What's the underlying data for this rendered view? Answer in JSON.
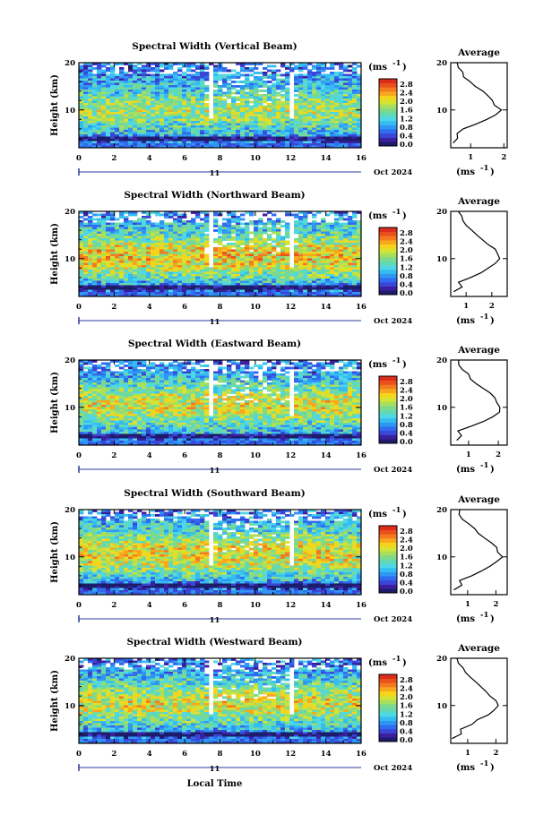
{
  "figure": {
    "xlabel": "Local Time",
    "date_label": "Oct 2024",
    "day_label": "11",
    "unit_label": "(ms",
    "unit_sup": "-1",
    "unit_close": ")",
    "avg_title": "Average",
    "ylabel": "Height (km)"
  },
  "colors": [
    "#1c1c6b",
    "#3b1f9e",
    "#3a46d6",
    "#2f6cf0",
    "#2f96f3",
    "#35bdf2",
    "#4fd7e5",
    "#63d9b2",
    "#7fd98a",
    "#a9df5a",
    "#d6e332",
    "#f5d51c",
    "#f7a81d",
    "#f37a1e",
    "#e9511c",
    "#dc2c1b"
  ],
  "chart_data": [
    {
      "type": "heatmap",
      "title": "Spectral Width (Vertical Beam)",
      "xlim": [
        0,
        16
      ],
      "ylim": [
        2,
        20
      ],
      "xticks": [
        0,
        2,
        4,
        6,
        8,
        10,
        12,
        14,
        16
      ],
      "xtick_labels": [
        "0",
        "2",
        "4",
        "6",
        "8",
        "10",
        "12",
        "14",
        "16"
      ],
      "yticks": [
        10,
        20
      ],
      "colorbar_ticks": [
        "2.8",
        "2.4",
        "2.0",
        "1.6",
        "1.2",
        "0.8",
        "0.4",
        "0.0"
      ],
      "colorbar_range": [
        0,
        3.0
      ],
      "profile_band": [
        {
          "z": 2,
          "v": 0.5
        },
        {
          "z": 4,
          "v": 0.8
        },
        {
          "z": 6,
          "v": 1.2
        },
        {
          "z": 8,
          "v": 1.6
        },
        {
          "z": 10,
          "v": 1.8
        },
        {
          "z": 12,
          "v": 1.6
        },
        {
          "z": 14,
          "v": 1.2
        },
        {
          "z": 16,
          "v": 0.9
        },
        {
          "z": 18,
          "v": 0.7
        },
        {
          "z": 20,
          "v": 0.6
        }
      ],
      "avg": {
        "xticks": [
          1,
          2
        ],
        "xlim": [
          0.4,
          2.1
        ],
        "yticks": [
          10,
          20
        ],
        "profile": [
          {
            "z": 3,
            "v": 0.45
          },
          {
            "z": 4,
            "v": 0.55
          },
          {
            "z": 5,
            "v": 0.6
          },
          {
            "z": 6,
            "v": 0.8
          },
          {
            "z": 7,
            "v": 1.2
          },
          {
            "z": 8,
            "v": 1.5
          },
          {
            "z": 9,
            "v": 1.75
          },
          {
            "z": 10,
            "v": 1.9
          },
          {
            "z": 11,
            "v": 1.75
          },
          {
            "z": 12,
            "v": 1.6
          },
          {
            "z": 13,
            "v": 1.5
          },
          {
            "z": 14,
            "v": 1.35
          },
          {
            "z": 15,
            "v": 1.15
          },
          {
            "z": 16,
            "v": 0.95
          },
          {
            "z": 17,
            "v": 0.8
          },
          {
            "z": 18,
            "v": 0.72
          },
          {
            "z": 19,
            "v": 0.6
          },
          {
            "z": 20,
            "v": 0.55
          }
        ]
      }
    },
    {
      "type": "heatmap",
      "title": "Spectral Width (Northward Beam)",
      "xlim": [
        0,
        16
      ],
      "ylim": [
        2,
        20
      ],
      "xticks": [
        0,
        2,
        4,
        6,
        8,
        10,
        12,
        14,
        16
      ],
      "xtick_labels": [
        "0",
        "2",
        "4",
        "6",
        "8",
        "10",
        "12",
        "14",
        "16"
      ],
      "yticks": [
        10,
        20
      ],
      "colorbar_ticks": [
        "2.8",
        "2.4",
        "2.0",
        "1.6",
        "1.2",
        "0.8",
        "0.4",
        "0.0"
      ],
      "colorbar_range": [
        0,
        3.0
      ],
      "profile_band": [
        {
          "z": 2,
          "v": 0.4
        },
        {
          "z": 4,
          "v": 0.7
        },
        {
          "z": 6,
          "v": 1.4
        },
        {
          "z": 8,
          "v": 1.9
        },
        {
          "z": 10,
          "v": 2.2
        },
        {
          "z": 12,
          "v": 2.1
        },
        {
          "z": 14,
          "v": 1.6
        },
        {
          "z": 16,
          "v": 1.2
        },
        {
          "z": 18,
          "v": 0.9
        },
        {
          "z": 20,
          "v": 0.7
        }
      ],
      "avg": {
        "xticks": [
          1,
          2
        ],
        "xlim": [
          0.4,
          2.6
        ],
        "yticks": [
          10,
          20
        ],
        "profile": [
          {
            "z": 3,
            "v": 0.5
          },
          {
            "z": 4,
            "v": 0.8
          },
          {
            "z": 5,
            "v": 0.75
          },
          {
            "z": 6,
            "v": 1.2
          },
          {
            "z": 7,
            "v": 1.6
          },
          {
            "z": 8,
            "v": 1.9
          },
          {
            "z": 9,
            "v": 2.1
          },
          {
            "z": 10,
            "v": 2.3
          },
          {
            "z": 11,
            "v": 2.2
          },
          {
            "z": 12,
            "v": 2.1
          },
          {
            "z": 13,
            "v": 1.9
          },
          {
            "z": 14,
            "v": 1.6
          },
          {
            "z": 15,
            "v": 1.4
          },
          {
            "z": 16,
            "v": 1.2
          },
          {
            "z": 17,
            "v": 1.0
          },
          {
            "z": 18,
            "v": 0.9
          },
          {
            "z": 19,
            "v": 0.8
          },
          {
            "z": 20,
            "v": 0.7
          }
        ]
      }
    },
    {
      "type": "heatmap",
      "title": "Spectral Width (Eastward Beam)",
      "xlim": [
        0,
        16
      ],
      "ylim": [
        2,
        20
      ],
      "xticks": [
        0,
        2,
        4,
        6,
        8,
        10,
        12,
        14,
        16
      ],
      "xtick_labels": [
        "0",
        "2",
        "4",
        "6",
        "8",
        "10",
        "12",
        "14",
        "16"
      ],
      "yticks": [
        10,
        20
      ],
      "colorbar_ticks": [
        "2.8",
        "2.4",
        "2.0",
        "1.6",
        "1.2",
        "0.8",
        "0.4",
        "0.0"
      ],
      "colorbar_range": [
        0,
        3.0
      ],
      "profile_band": [
        {
          "z": 2,
          "v": 0.4
        },
        {
          "z": 4,
          "v": 0.8
        },
        {
          "z": 6,
          "v": 1.3
        },
        {
          "z": 8,
          "v": 1.7
        },
        {
          "z": 10,
          "v": 2.0
        },
        {
          "z": 12,
          "v": 1.9
        },
        {
          "z": 14,
          "v": 1.5
        },
        {
          "z": 16,
          "v": 1.1
        },
        {
          "z": 18,
          "v": 0.8
        },
        {
          "z": 20,
          "v": 0.6
        }
      ],
      "avg": {
        "xticks": [
          1,
          2
        ],
        "xlim": [
          0.4,
          2.3
        ],
        "yticks": [
          10,
          20
        ],
        "profile": [
          {
            "z": 3,
            "v": 0.55
          },
          {
            "z": 4,
            "v": 0.8
          },
          {
            "z": 5,
            "v": 0.7
          },
          {
            "z": 6,
            "v": 1.1
          },
          {
            "z": 7,
            "v": 1.5
          },
          {
            "z": 8,
            "v": 1.8
          },
          {
            "z": 9,
            "v": 2.0
          },
          {
            "z": 10,
            "v": 2.1
          },
          {
            "z": 11,
            "v": 2.0
          },
          {
            "z": 12,
            "v": 1.9
          },
          {
            "z": 13,
            "v": 1.7
          },
          {
            "z": 14,
            "v": 1.5
          },
          {
            "z": 15,
            "v": 1.3
          },
          {
            "z": 16,
            "v": 1.1
          },
          {
            "z": 17,
            "v": 0.95
          },
          {
            "z": 18,
            "v": 0.8
          },
          {
            "z": 19,
            "v": 0.7
          },
          {
            "z": 20,
            "v": 0.65
          }
        ]
      }
    },
    {
      "type": "heatmap",
      "title": "Spectral Width (Southward Beam)",
      "xlim": [
        0,
        16
      ],
      "ylim": [
        2,
        20
      ],
      "xticks": [
        0,
        2,
        4,
        6,
        8,
        10,
        12,
        14,
        16
      ],
      "xtick_labels": [
        "0",
        "2",
        "4",
        "6",
        "8",
        "10",
        "12",
        "14",
        "16"
      ],
      "yticks": [
        10,
        20
      ],
      "colorbar_ticks": [
        "2.8",
        "2.4",
        "2.0",
        "1.6",
        "1.2",
        "0.8",
        "0.4",
        "0.0"
      ],
      "colorbar_range": [
        0,
        3.0
      ],
      "profile_band": [
        {
          "z": 2,
          "v": 0.4
        },
        {
          "z": 4,
          "v": 0.7
        },
        {
          "z": 6,
          "v": 1.3
        },
        {
          "z": 8,
          "v": 1.8
        },
        {
          "z": 10,
          "v": 2.1
        },
        {
          "z": 12,
          "v": 2.0
        },
        {
          "z": 14,
          "v": 1.6
        },
        {
          "z": 16,
          "v": 1.2
        },
        {
          "z": 18,
          "v": 0.9
        },
        {
          "z": 20,
          "v": 0.7
        }
      ],
      "avg": {
        "xticks": [
          1,
          2
        ],
        "xlim": [
          0.4,
          2.4
        ],
        "yticks": [
          10,
          20
        ],
        "profile": [
          {
            "z": 3,
            "v": 0.5
          },
          {
            "z": 4,
            "v": 0.75
          },
          {
            "z": 5,
            "v": 0.7
          },
          {
            "z": 6,
            "v": 1.1
          },
          {
            "z": 7,
            "v": 1.5
          },
          {
            "z": 8,
            "v": 1.8
          },
          {
            "z": 9,
            "v": 2.0
          },
          {
            "z": 10,
            "v": 2.2
          },
          {
            "z": 11,
            "v": 2.1
          },
          {
            "z": 12,
            "v": 2.0
          },
          {
            "z": 13,
            "v": 1.8
          },
          {
            "z": 14,
            "v": 1.6
          },
          {
            "z": 15,
            "v": 1.4
          },
          {
            "z": 16,
            "v": 1.2
          },
          {
            "z": 17,
            "v": 1.0
          },
          {
            "z": 18,
            "v": 0.85
          },
          {
            "z": 19,
            "v": 0.75
          },
          {
            "z": 20,
            "v": 0.7
          }
        ]
      }
    },
    {
      "type": "heatmap",
      "title": "Spectral Width (Westward Beam)",
      "xlim": [
        0,
        16
      ],
      "ylim": [
        2,
        20
      ],
      "xticks": [
        0,
        2,
        4,
        6,
        8,
        10,
        12,
        14,
        16
      ],
      "xtick_labels": [
        "0",
        "2",
        "4",
        "6",
        "8",
        "10",
        "12",
        "14",
        "16"
      ],
      "yticks": [
        10,
        20
      ],
      "colorbar_ticks": [
        "2.8",
        "2.4",
        "2.0",
        "1.6",
        "1.2",
        "0.8",
        "0.4",
        "0.0"
      ],
      "colorbar_range": [
        0,
        3.0
      ],
      "profile_band": [
        {
          "z": 2,
          "v": 0.4
        },
        {
          "z": 4,
          "v": 0.7
        },
        {
          "z": 6,
          "v": 1.3
        },
        {
          "z": 8,
          "v": 1.7
        },
        {
          "z": 10,
          "v": 2.0
        },
        {
          "z": 12,
          "v": 1.9
        },
        {
          "z": 14,
          "v": 1.5
        },
        {
          "z": 16,
          "v": 1.1
        },
        {
          "z": 18,
          "v": 0.8
        },
        {
          "z": 20,
          "v": 0.6
        }
      ],
      "avg": {
        "xticks": [
          1,
          2
        ],
        "xlim": [
          0.4,
          2.4
        ],
        "yticks": [
          10,
          20
        ],
        "profile": [
          {
            "z": 3,
            "v": 0.5
          },
          {
            "z": 4,
            "v": 0.8
          },
          {
            "z": 5,
            "v": 0.75
          },
          {
            "z": 6,
            "v": 1.1
          },
          {
            "z": 7,
            "v": 1.4
          },
          {
            "z": 8,
            "v": 1.7
          },
          {
            "z": 9,
            "v": 1.9
          },
          {
            "z": 10,
            "v": 2.1
          },
          {
            "z": 11,
            "v": 2.0
          },
          {
            "z": 12,
            "v": 1.85
          },
          {
            "z": 13,
            "v": 1.7
          },
          {
            "z": 14,
            "v": 1.5
          },
          {
            "z": 15,
            "v": 1.3
          },
          {
            "z": 16,
            "v": 1.1
          },
          {
            "z": 17,
            "v": 0.95
          },
          {
            "z": 18,
            "v": 0.8
          },
          {
            "z": 19,
            "v": 0.7
          },
          {
            "z": 20,
            "v": 0.65
          }
        ]
      }
    }
  ]
}
